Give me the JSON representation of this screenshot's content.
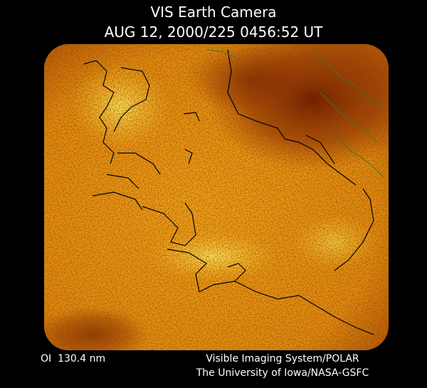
{
  "header": {
    "title": "VIS Earth Camera",
    "timestamp": "AUG 12, 2000/225 0456:52 UT"
  },
  "footer": {
    "filter": "OI  130.4 nm",
    "instrument": "Visible Imaging System/POLAR",
    "credit": "The University of Iowa/NASA-GSFC"
  }
}
